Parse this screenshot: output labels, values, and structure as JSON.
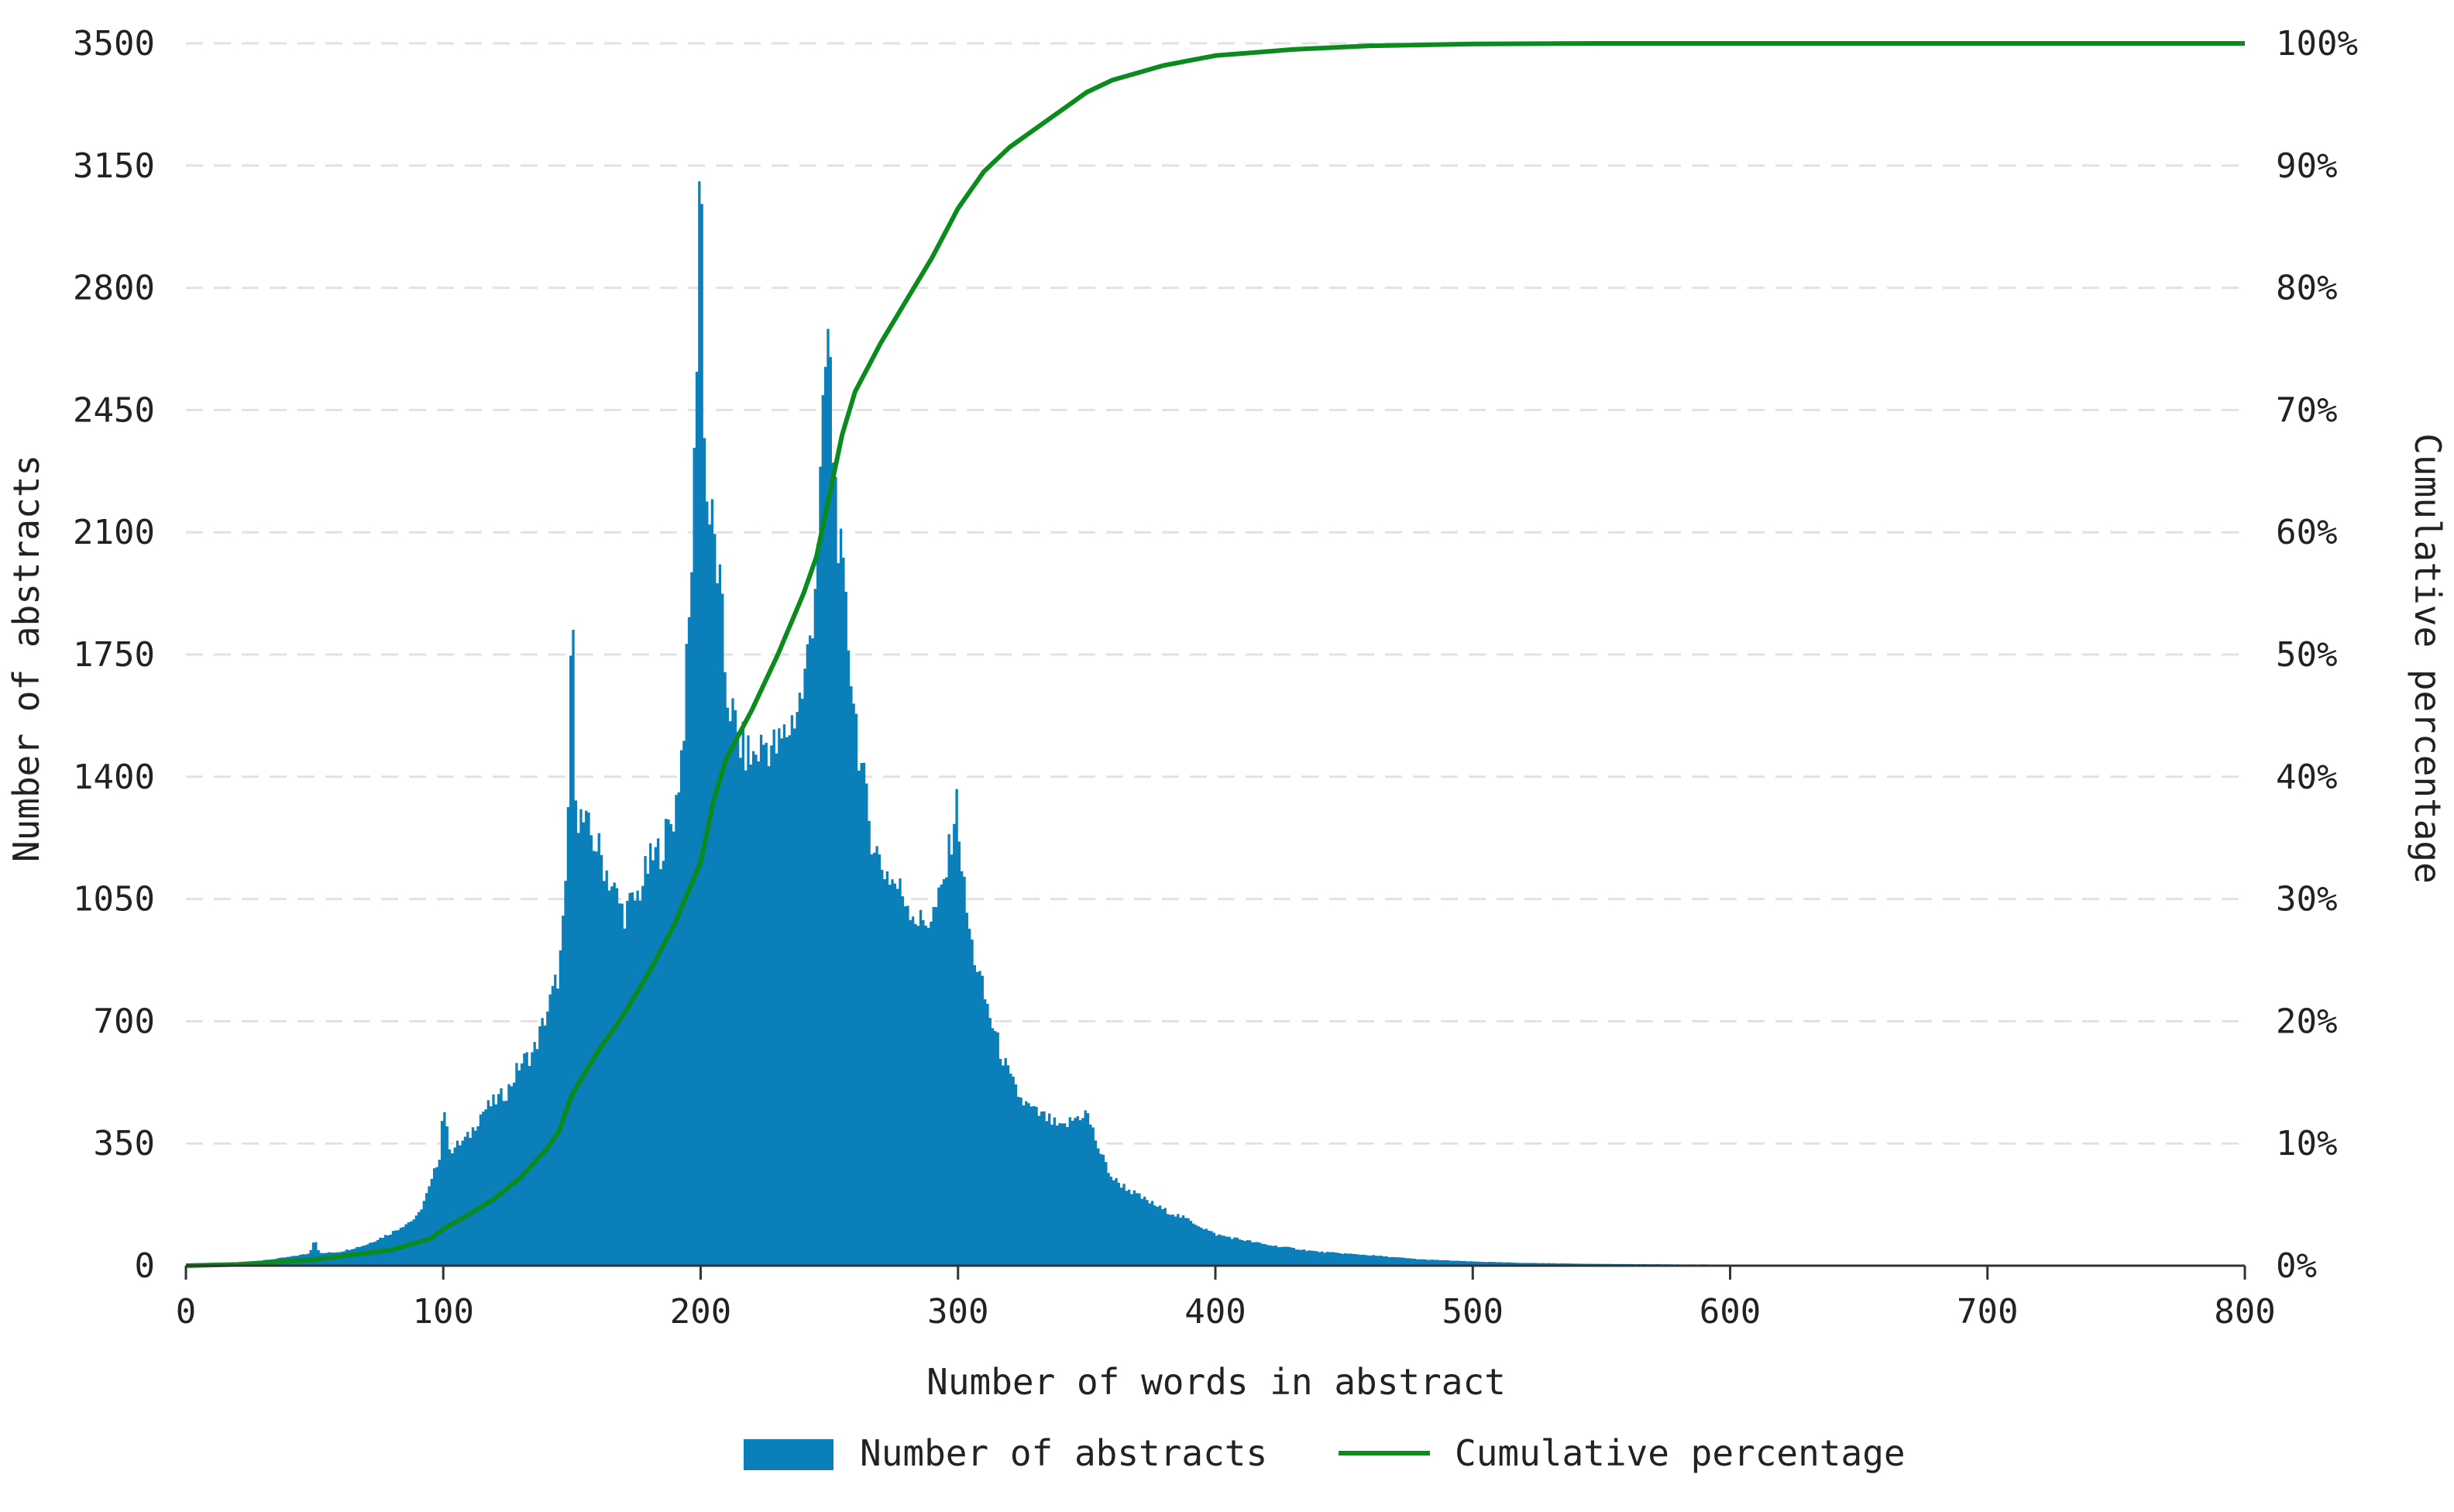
{
  "chart_data": {
    "type": "bar",
    "title": "",
    "xlabel": "Number of words in abstract",
    "ylabel": "Number of abstracts",
    "y2label": "Cumulative percentage",
    "xlim": [
      0,
      800
    ],
    "ylim": [
      0,
      3500
    ],
    "y2lim": [
      0,
      100
    ],
    "x_ticks": [
      "0",
      "100",
      "200",
      "300",
      "400",
      "500",
      "600",
      "700",
      "800"
    ],
    "y_ticks": [
      "0",
      "350",
      "700",
      "1050",
      "1400",
      "1750",
      "2100",
      "2450",
      "2800",
      "3150",
      "3500"
    ],
    "y2_ticks": [
      "0%",
      "10%",
      "20%",
      "30%",
      "40%",
      "50%",
      "60%",
      "70%",
      "80%",
      "90%",
      "100%"
    ],
    "grid": "horizontal dashed",
    "legend_position": "bottom-center",
    "series": [
      {
        "name": "Number of abstracts",
        "kind": "histogram",
        "bin_width": 1,
        "color": "#0a7fba",
        "points": [
          [
            0,
            0
          ],
          [
            10,
            0
          ],
          [
            20,
            5
          ],
          [
            30,
            15
          ],
          [
            40,
            25
          ],
          [
            48,
            35
          ],
          [
            50,
            80
          ],
          [
            52,
            35
          ],
          [
            60,
            40
          ],
          [
            70,
            60
          ],
          [
            80,
            95
          ],
          [
            90,
            140
          ],
          [
            95,
            230
          ],
          [
            99,
            330
          ],
          [
            100,
            500
          ],
          [
            101,
            400
          ],
          [
            103,
            330
          ],
          [
            110,
            370
          ],
          [
            115,
            440
          ],
          [
            120,
            470
          ],
          [
            125,
            500
          ],
          [
            130,
            580
          ],
          [
            135,
            610
          ],
          [
            140,
            720
          ],
          [
            145,
            840
          ],
          [
            148,
            1100
          ],
          [
            149,
            1500
          ],
          [
            150,
            2000
          ],
          [
            151,
            1500
          ],
          [
            152,
            1300
          ],
          [
            155,
            1260
          ],
          [
            160,
            1200
          ],
          [
            165,
            1100
          ],
          [
            170,
            1010
          ],
          [
            175,
            1050
          ],
          [
            180,
            1150
          ],
          [
            185,
            1200
          ],
          [
            190,
            1300
          ],
          [
            193,
            1500
          ],
          [
            196,
            1900
          ],
          [
            198,
            2400
          ],
          [
            199,
            2900
          ],
          [
            200,
            3330
          ],
          [
            201,
            2700
          ],
          [
            202,
            2200
          ],
          [
            205,
            2100
          ],
          [
            208,
            1900
          ],
          [
            210,
            1650
          ],
          [
            215,
            1500
          ],
          [
            220,
            1450
          ],
          [
            225,
            1500
          ],
          [
            230,
            1480
          ],
          [
            235,
            1550
          ],
          [
            240,
            1650
          ],
          [
            244,
            1900
          ],
          [
            247,
            2300
          ],
          [
            249,
            2650
          ],
          [
            250,
            2670
          ],
          [
            251,
            2400
          ],
          [
            254,
            2050
          ],
          [
            258,
            1750
          ],
          [
            262,
            1450
          ],
          [
            266,
            1250
          ],
          [
            270,
            1150
          ],
          [
            275,
            1100
          ],
          [
            280,
            1050
          ],
          [
            285,
            980
          ],
          [
            290,
            1000
          ],
          [
            293,
            1050
          ],
          [
            296,
            1150
          ],
          [
            299,
            1320
          ],
          [
            300,
            1310
          ],
          [
            302,
            1100
          ],
          [
            305,
            930
          ],
          [
            310,
            780
          ],
          [
            315,
            650
          ],
          [
            320,
            540
          ],
          [
            325,
            470
          ],
          [
            330,
            440
          ],
          [
            335,
            420
          ],
          [
            340,
            390
          ],
          [
            345,
            420
          ],
          [
            350,
            440
          ],
          [
            355,
            330
          ],
          [
            360,
            250
          ],
          [
            370,
            200
          ],
          [
            380,
            160
          ],
          [
            390,
            130
          ],
          [
            400,
            90
          ],
          [
            420,
            60
          ],
          [
            440,
            40
          ],
          [
            460,
            30
          ],
          [
            480,
            18
          ],
          [
            500,
            12
          ],
          [
            520,
            8
          ],
          [
            550,
            5
          ],
          [
            600,
            3
          ],
          [
            650,
            2
          ],
          [
            700,
            1
          ],
          [
            800,
            0
          ]
        ]
      },
      {
        "name": "Cumulative percentage",
        "kind": "line",
        "color": "#0b8a1e",
        "points": [
          [
            0,
            0
          ],
          [
            20,
            0.1
          ],
          [
            50,
            0.5
          ],
          [
            80,
            1.3
          ],
          [
            95,
            2.2
          ],
          [
            100,
            3
          ],
          [
            110,
            4.2
          ],
          [
            120,
            5.5
          ],
          [
            130,
            7.2
          ],
          [
            140,
            9.5
          ],
          [
            145,
            11
          ],
          [
            150,
            14
          ],
          [
            160,
            17.5
          ],
          [
            170,
            20.5
          ],
          [
            180,
            24
          ],
          [
            190,
            28
          ],
          [
            195,
            30.5
          ],
          [
            200,
            33
          ],
          [
            205,
            38
          ],
          [
            210,
            41.5
          ],
          [
            220,
            45.5
          ],
          [
            230,
            50
          ],
          [
            240,
            55
          ],
          [
            245,
            58
          ],
          [
            250,
            63
          ],
          [
            255,
            68
          ],
          [
            260,
            71.5
          ],
          [
            270,
            75.5
          ],
          [
            280,
            79
          ],
          [
            290,
            82.5
          ],
          [
            300,
            86.5
          ],
          [
            310,
            89.5
          ],
          [
            320,
            91.5
          ],
          [
            330,
            93
          ],
          [
            340,
            94.5
          ],
          [
            350,
            96
          ],
          [
            360,
            97
          ],
          [
            380,
            98.2
          ],
          [
            400,
            99
          ],
          [
            430,
            99.5
          ],
          [
            460,
            99.8
          ],
          [
            500,
            99.95
          ],
          [
            550,
            100
          ],
          [
            800,
            100
          ]
        ]
      }
    ]
  }
}
